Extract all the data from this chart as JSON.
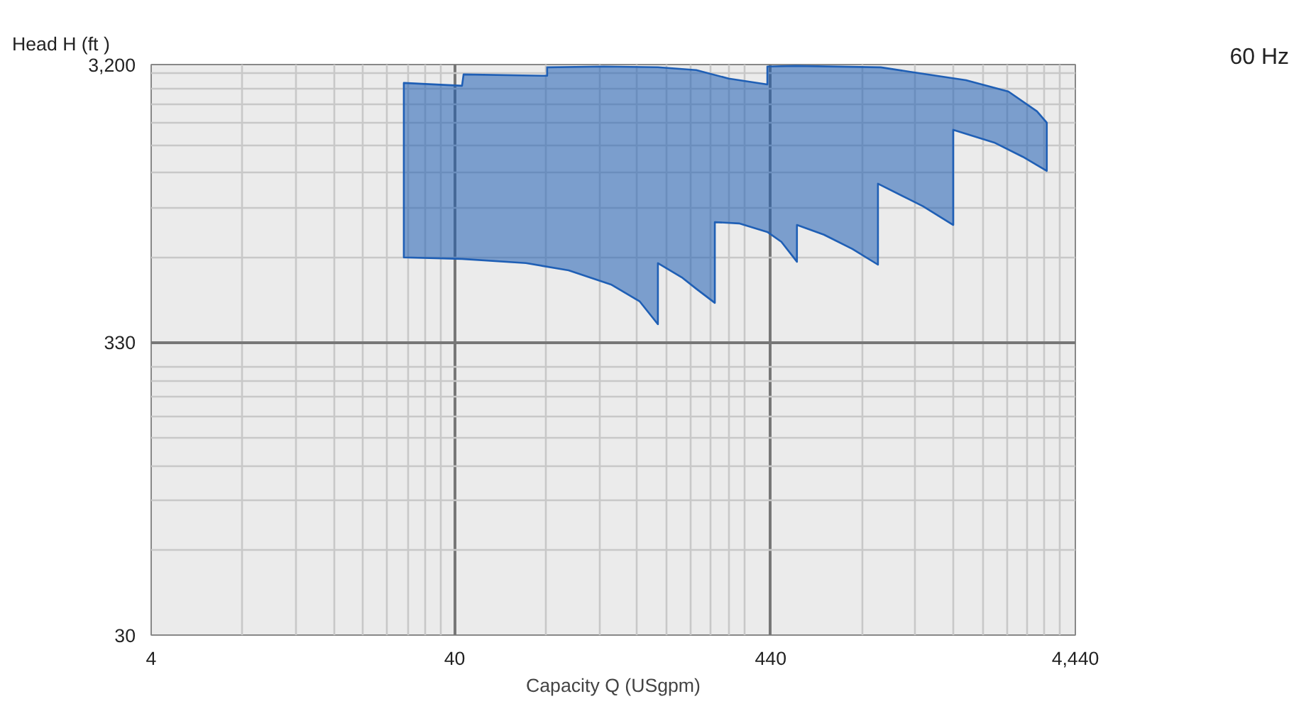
{
  "chart_data": {
    "type": "area",
    "xlabel": "Capacity Q (USgpm)",
    "ylabel": "Head H (ft )",
    "annotations": [
      "60 Hz"
    ],
    "log": "xy",
    "grid": true,
    "xlim": [
      4,
      4440
    ],
    "xticks": [
      4,
      40,
      440,
      {
        "value": 4440,
        "label": "4,440"
      }
    ],
    "ylim": [
      30,
      3200
    ],
    "yticks": [
      30,
      330,
      {
        "value": 3200,
        "label": "3,200"
      }
    ],
    "series": [
      {
        "color": "#1f5fb5",
        "x": [
          27.2,
          27.2,
          42.3,
          42.8,
          80.7,
          80.7,
          124,
          187,
          250,
          320,
          429,
          429,
          532,
          1014,
          1258,
          1936,
          2672,
          3318,
          3575,
          3575,
          2980,
          2400,
          1758,
          1758,
          1400,
          1258,
          993,
          993,
          818,
          659,
          537,
          537,
          477,
          429,
          346,
          288,
          288,
          250,
          224,
          187,
          187,
          163,
          131,
          95,
          68.7,
          42.3
        ],
        "values": [
          660,
          2753,
          2690,
          2952,
          2919,
          3129,
          3150,
          3130,
          3060,
          2853,
          2720,
          3150,
          3165,
          3129,
          3021,
          2817,
          2566,
          2182,
          1988,
          1340,
          1504,
          1690,
          1876,
          861,
          1002,
          1062,
          1207,
          622,
          707,
          795,
          861,
          637,
          750,
          813,
          872,
          881,
          455,
          511,
          561,
          630,
          382,
          460,
          529,
          594,
          630,
          652
        ]
      }
    ]
  }
}
